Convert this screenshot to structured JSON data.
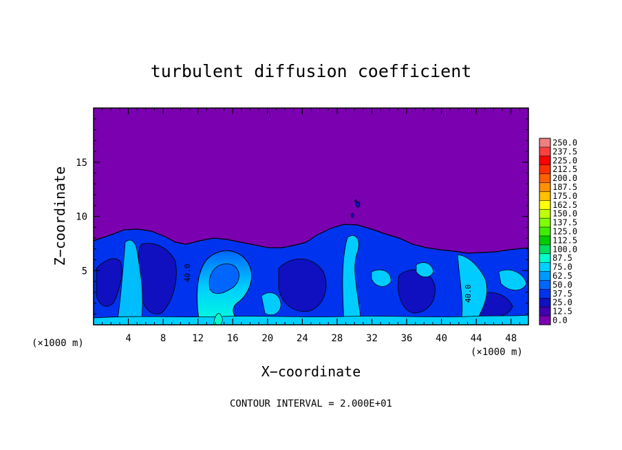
{
  "chart_data": {
    "type": "heatmap",
    "title": "turbulent diffusion coefficient",
    "xlabel": "X−coordinate",
    "ylabel": "Z−coordinate",
    "x_unit_left": "(×1000 m)",
    "x_unit_right": "(×1000 m)",
    "footer": "CONTOUR INTERVAL = 2.000E+01",
    "xlim": [
      0,
      50
    ],
    "ylim": [
      0,
      20
    ],
    "x_ticks": [
      "4",
      "8",
      "12",
      "16",
      "20",
      "24",
      "28",
      "32",
      "36",
      "40",
      "44",
      "48"
    ],
    "y_ticks": [
      "5",
      "10",
      "15"
    ],
    "contour_labels": [
      "40.0",
      "40.0"
    ],
    "colorbar": {
      "labels": [
        "250.0",
        "237.5",
        "225.0",
        "212.5",
        "200.0",
        "187.5",
        "175.0",
        "162.5",
        "150.0",
        "137.5",
        "125.0",
        "112.5",
        "100.0",
        "87.5",
        "75.0",
        "62.5",
        "50.0",
        "37.5",
        "25.0",
        "12.5",
        "0.0"
      ],
      "colors": [
        "#f08080",
        "#ff4040",
        "#ff0000",
        "#ff3000",
        "#ff6000",
        "#ff9000",
        "#ffc000",
        "#ffff00",
        "#c0ff00",
        "#80ff00",
        "#40ee00",
        "#00cc00",
        "#00dd60",
        "#00ffcc",
        "#00d0ff",
        "#0099ff",
        "#0066ff",
        "#0033ee",
        "#1010c0",
        "#4000b0",
        "#7a00b0"
      ]
    }
  }
}
